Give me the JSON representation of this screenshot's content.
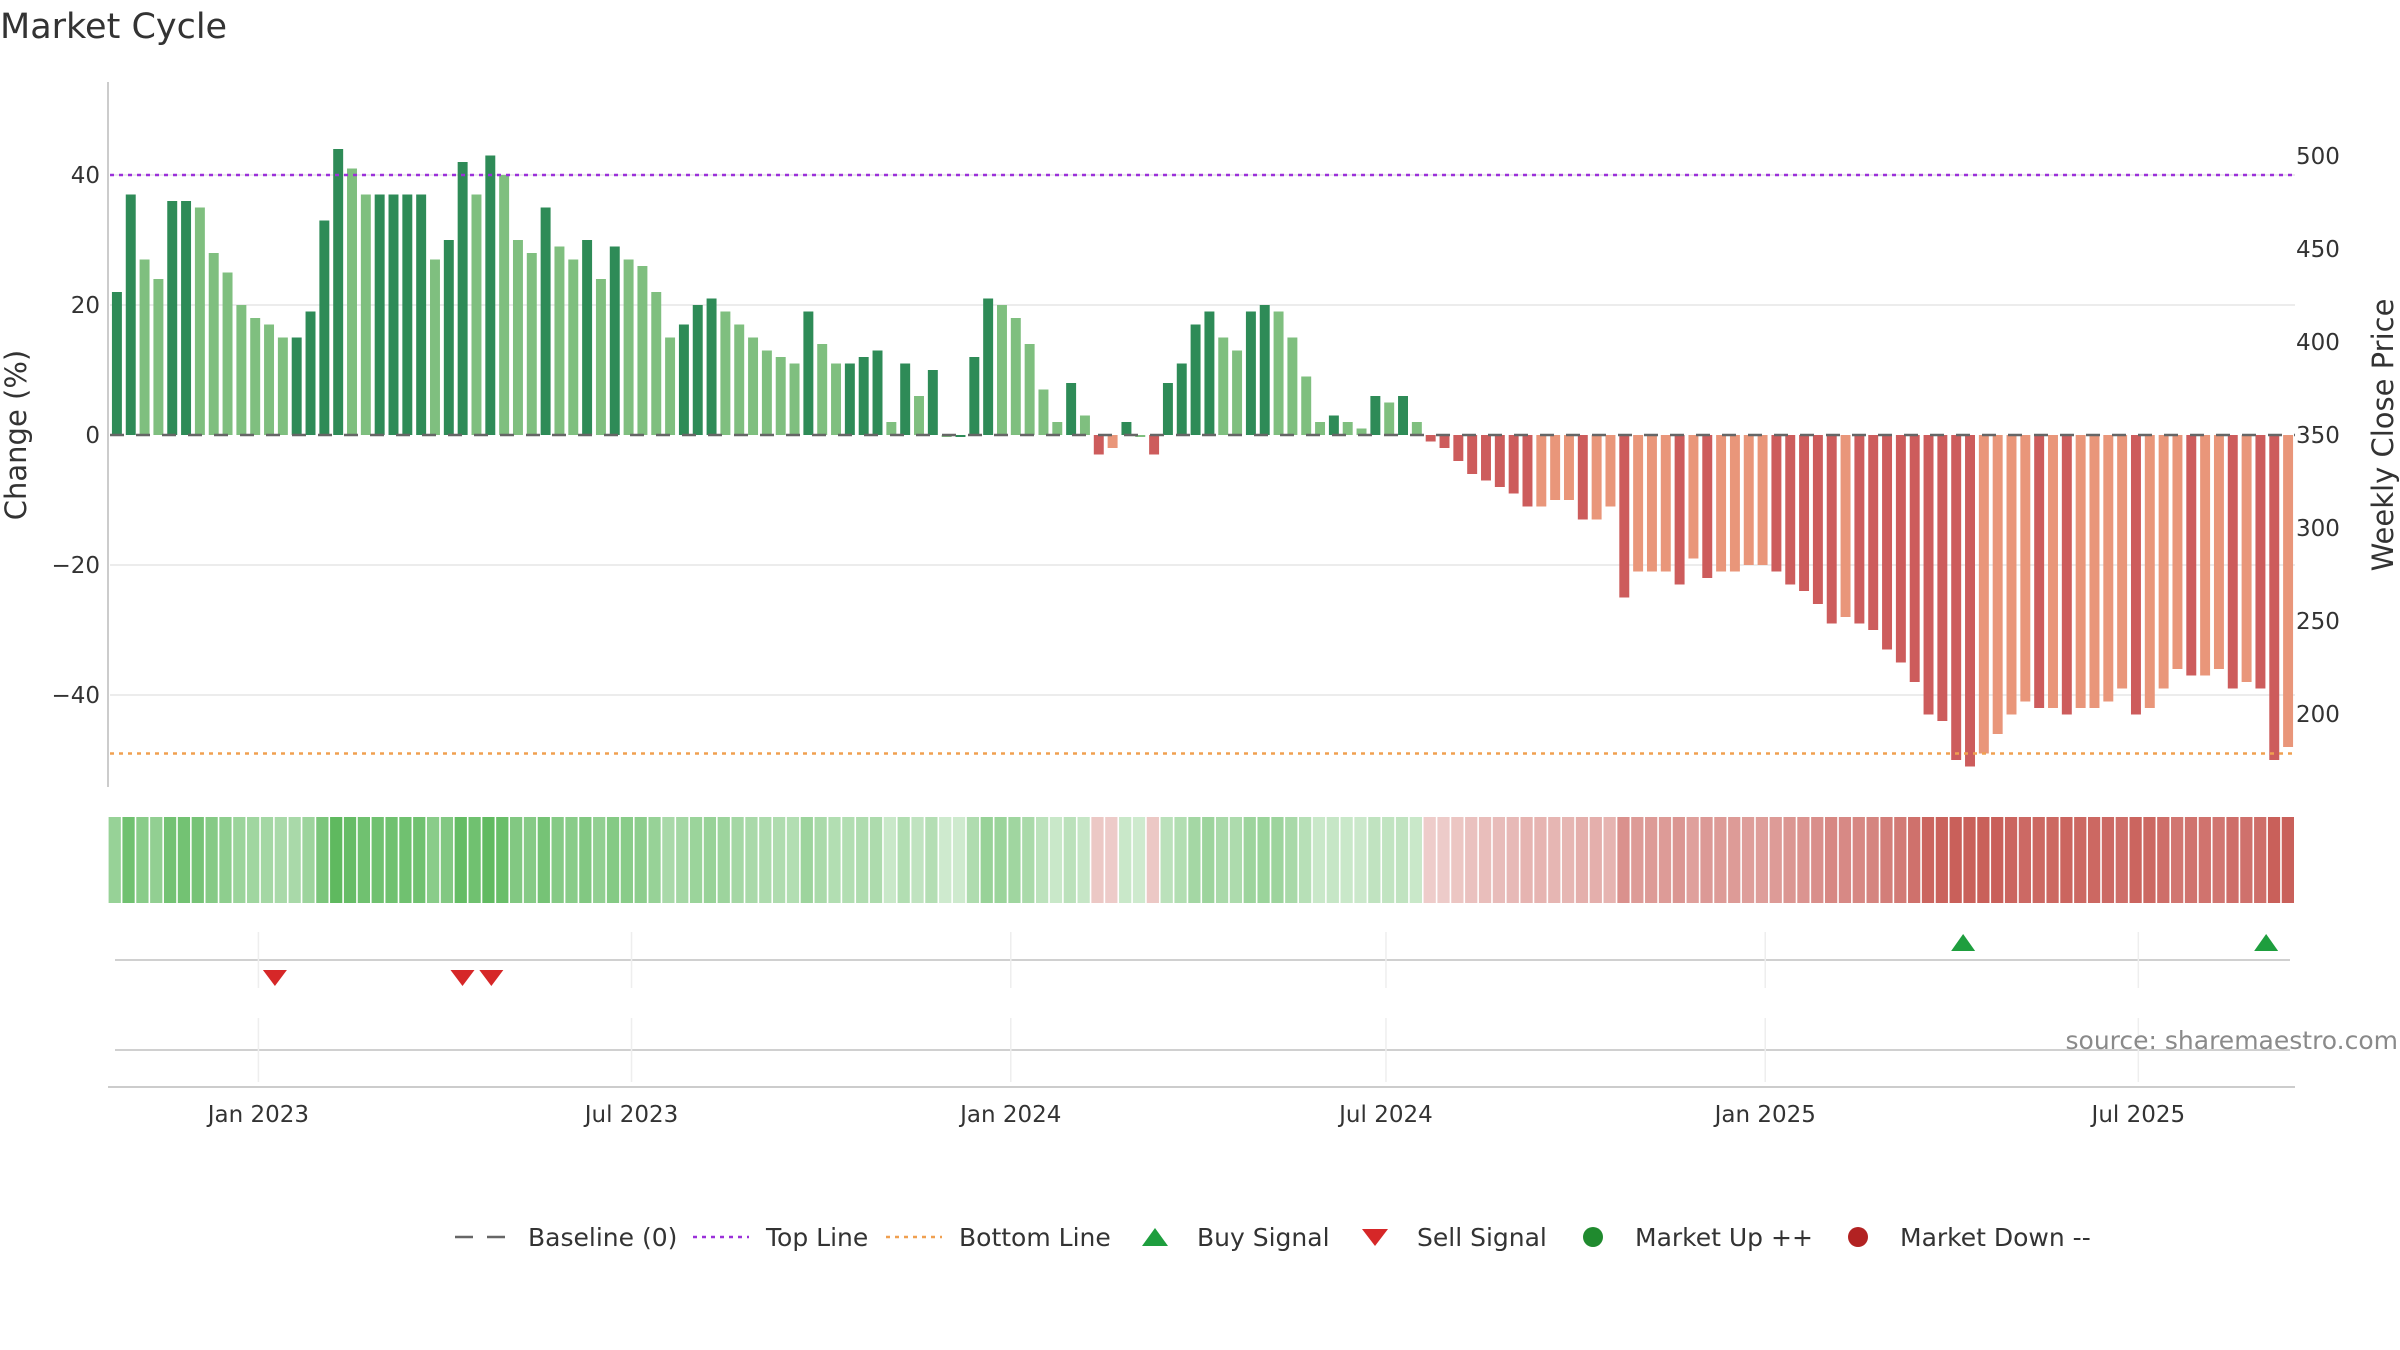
{
  "chart_data": {
    "type": "bar",
    "title": "Market Cycle",
    "ylabel": "Change (%)",
    "y2label": "Weekly Close Price",
    "ylim": [
      -55,
      55
    ],
    "y2lim": [
      170,
      520
    ],
    "y2ticks": [
      200,
      250,
      300,
      350,
      400,
      450,
      500
    ],
    "yticks": [
      -40,
      -20,
      0,
      20,
      40
    ],
    "xticks": [
      "Jan 2023",
      "Jul 2023",
      "Jan 2024",
      "Jul 2024",
      "Jan 2025",
      "Jul 2025"
    ],
    "grid": true,
    "x_start": "2022-10-21",
    "x_end": "2025-09-15",
    "week_start": "2022-10-24",
    "top_line": 40,
    "bottom_line": -49,
    "change_pct": [
      22,
      37,
      27,
      24,
      36,
      36,
      35,
      28,
      25,
      20,
      18,
      17,
      15,
      15,
      19,
      33,
      44,
      41,
      37,
      37,
      37,
      37,
      37,
      27,
      30,
      42,
      37,
      43,
      40,
      30,
      28,
      35,
      29,
      27,
      30,
      24,
      29,
      27,
      26,
      22,
      15,
      17,
      20,
      21,
      19,
      17,
      15,
      13,
      12,
      11,
      19,
      14,
      11,
      11,
      12,
      13,
      2,
      11,
      6,
      10,
      0,
      0,
      12,
      21,
      20,
      18,
      14,
      7,
      2,
      8,
      3,
      -3,
      -2,
      2,
      0,
      -3,
      8,
      11,
      17,
      19,
      15,
      13,
      19,
      20,
      19,
      15,
      9,
      2,
      3,
      2,
      1,
      6,
      5,
      6,
      2,
      -1,
      -2,
      -4,
      -6,
      -7,
      -8,
      -9,
      -11,
      -11,
      -10,
      -10,
      -13,
      -13,
      -11,
      -25,
      -21,
      -21,
      -21,
      -23,
      -19,
      -22,
      -21,
      -21,
      -20,
      -20,
      -21,
      -23,
      -24,
      -26,
      -29,
      -28,
      -29,
      -30,
      -33,
      -35,
      -38,
      -43,
      -44,
      -50,
      -51,
      -49,
      -46,
      -43,
      -41,
      -42,
      -42,
      -43,
      -42,
      -42,
      -41,
      -39,
      -43,
      -42,
      -39,
      -36,
      -37,
      -37,
      -36,
      -39,
      -38,
      -39,
      -50,
      -48
    ],
    "signals": [
      {
        "type": "sell",
        "date": "2023-01-09"
      },
      {
        "type": "sell",
        "date": "2023-04-10"
      },
      {
        "type": "sell",
        "date": "2023-04-24"
      },
      {
        "type": "buy",
        "date": "2025-04-07"
      },
      {
        "type": "buy",
        "date": "2025-09-01"
      }
    ],
    "legend": [
      {
        "label": "Baseline (0)",
        "marker": "dash-gray"
      },
      {
        "label": "Top Line",
        "marker": "dot-purple"
      },
      {
        "label": "Bottom Line",
        "marker": "dot-orange"
      },
      {
        "label": "Buy Signal",
        "marker": "triangle-up-green"
      },
      {
        "label": "Sell Signal",
        "marker": "triangle-down-red"
      },
      {
        "label": "Market Up ++",
        "marker": "circle-green"
      },
      {
        "label": "Market Down --",
        "marker": "circle-red"
      }
    ],
    "legend_position": "bottom-center",
    "source": "source: sharemaestro.com",
    "colors": {
      "up_dark": "#2e8b57",
      "up_light": "#7fbf7f",
      "down_dark": "#cd5c5c",
      "down_light": "#e9967a",
      "top_line": "#9b30d9",
      "bottom_line": "#f0a050",
      "buy": "#1e9e3e",
      "sell": "#d62728",
      "baseline": "#666666",
      "heat_green": "#5cb85c",
      "heat_red": "#c9605a"
    }
  }
}
